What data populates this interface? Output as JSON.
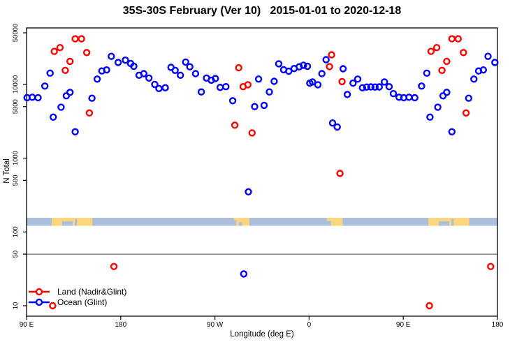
{
  "title": "35S-30S February (Ver 10)   2015-01-01 to 2020-12-18",
  "legend": {
    "items": [
      {
        "label": "Land (Nadir&Glint)",
        "color": "#ff0000"
      },
      {
        "label": "Ocean (Glint)",
        "color": "#0000ff"
      }
    ]
  },
  "chart_data": {
    "type": "scatter",
    "title": "35S-30S February (Ver 10)   2015-01-01 to 2020-12-18",
    "xlabel": "Longitude (deg E)",
    "ylabel": "N Total",
    "x_axis": {
      "range": [
        90,
        540
      ],
      "tick_values": [
        90,
        180,
        270,
        360,
        450,
        540
      ],
      "tick_labels": [
        "90 E",
        "180",
        "90 W",
        "0",
        "90 E",
        "180"
      ],
      "note": "longitude axis wraps: 90E to 180, through 90W and 0, back to 180"
    },
    "y_axis": {
      "scale": "log",
      "tick_values": [
        10,
        50,
        100,
        500,
        1000,
        5000,
        10000,
        50000
      ],
      "tick_labels": [
        "10",
        "50",
        "100",
        "500",
        "1000",
        "5000",
        "10000",
        "50000"
      ],
      "range": [
        8,
        70000
      ]
    },
    "reference_line_y": 50,
    "grid": false,
    "legend_position": "bottom-left",
    "series": [
      {
        "name": "Land (Nadir&Glint)",
        "color": "#ff0000",
        "points": [
          [
            116.5,
            28000
          ],
          [
            122,
            31500
          ],
          [
            127,
            15500
          ],
          [
            131.5,
            20500
          ],
          [
            136.5,
            41500
          ],
          [
            142.5,
            41500
          ],
          [
            147.5,
            27000
          ],
          [
            150,
            4100
          ],
          [
            115,
            10
          ],
          [
            173.5,
            34
          ],
          [
            476.5,
            28000
          ],
          [
            482,
            31500
          ],
          [
            487,
            15500
          ],
          [
            491.5,
            20500
          ],
          [
            496.5,
            41500
          ],
          [
            502.5,
            41500
          ],
          [
            507.5,
            27000
          ],
          [
            510,
            4100
          ],
          [
            475,
            10
          ],
          [
            533.5,
            34
          ],
          [
            289,
            2800
          ],
          [
            292.8,
            16800
          ],
          [
            297,
            9300
          ],
          [
            301.5,
            9900
          ],
          [
            305.5,
            2200
          ],
          [
            379.5,
            17400
          ],
          [
            381.5,
            25200
          ],
          [
            389.5,
            620
          ],
          [
            391.5,
            10900
          ]
        ]
      },
      {
        "name": "Ocean (Glint)",
        "color": "#0000ff",
        "points": [
          [
            90.5,
            6600
          ],
          [
            95.5,
            6700
          ],
          [
            101,
            6600
          ],
          [
            107.5,
            9500
          ],
          [
            112.5,
            14200
          ],
          [
            115.5,
            3600
          ],
          [
            123,
            4900
          ],
          [
            128,
            7000
          ],
          [
            131.5,
            7800
          ],
          [
            136.5,
            2280
          ],
          [
            152.5,
            6500
          ],
          [
            157.5,
            11800
          ],
          [
            162,
            15200
          ],
          [
            166.5,
            15700
          ],
          [
            171,
            24000
          ],
          [
            177.5,
            19800
          ],
          [
            184.5,
            21300
          ],
          [
            189.5,
            19200
          ],
          [
            192.5,
            17600
          ],
          [
            197.5,
            13300
          ],
          [
            202,
            14000
          ],
          [
            207,
            12200
          ],
          [
            212.5,
            10000
          ],
          [
            216.5,
            8800
          ],
          [
            222.5,
            9000
          ],
          [
            228,
            17000
          ],
          [
            232,
            15500
          ],
          [
            237,
            13300
          ],
          [
            242,
            20100
          ],
          [
            246,
            17300
          ],
          [
            251.5,
            14000
          ],
          [
            257,
            7900
          ],
          [
            262,
            12200
          ],
          [
            266.5,
            11400
          ],
          [
            270.5,
            12000
          ],
          [
            275,
            9100
          ],
          [
            280.5,
            9300
          ],
          [
            287,
            6000
          ],
          [
            297.6,
            27
          ],
          [
            302,
            350
          ],
          [
            308,
            5000
          ],
          [
            311.7,
            11800
          ],
          [
            317,
            5200
          ],
          [
            322,
            7900
          ],
          [
            326.6,
            11000
          ],
          [
            331,
            19000
          ],
          [
            335.7,
            15800
          ],
          [
            340.6,
            15100
          ],
          [
            345.7,
            16400
          ],
          [
            350.6,
            17300
          ],
          [
            354.6,
            18200
          ],
          [
            358.4,
            17600
          ],
          [
            360.7,
            10400
          ],
          [
            363.3,
            10800
          ],
          [
            368.4,
            9900
          ],
          [
            372.2,
            14000
          ],
          [
            376.2,
            21600
          ],
          [
            382.4,
            3000
          ],
          [
            386.9,
            2650
          ],
          [
            392.5,
            16300
          ],
          [
            396.5,
            7300
          ],
          [
            402,
            10400
          ],
          [
            406.5,
            11800
          ],
          [
            411,
            9000
          ],
          [
            415,
            9200
          ],
          [
            419,
            9250
          ],
          [
            423,
            9200
          ],
          [
            427,
            9250
          ],
          [
            432,
            10800
          ],
          [
            436.5,
            9300
          ],
          [
            440.5,
            7500
          ],
          [
            446,
            6700
          ],
          [
            450.5,
            6600
          ],
          [
            455.5,
            6700
          ],
          [
            461,
            6600
          ],
          [
            467.5,
            9500
          ],
          [
            472.5,
            14200
          ],
          [
            475.5,
            3600
          ],
          [
            483,
            4900
          ],
          [
            488,
            7000
          ],
          [
            491.5,
            7800
          ],
          [
            496.5,
            2280
          ],
          [
            512.5,
            6500
          ],
          [
            517.5,
            11800
          ],
          [
            522,
            15200
          ],
          [
            526.5,
            15700
          ],
          [
            531,
            24000
          ],
          [
            537.5,
            19800
          ]
        ]
      }
    ],
    "map_band": {
      "description": "world map strip of the 35S-30S latitude band",
      "ocean_color": "#a9bfdc",
      "land_color": "#fbd67e",
      "land_segments": [
        {
          "range": [
            114,
            153
          ],
          "notches": [
            [
              124,
              134,
              0.55
            ],
            [
              136,
              138.2,
              0.85
            ]
          ]
        },
        {
          "range": [
            288,
            303
          ],
          "notches": [
            [
              288,
              290.5,
              0.7
            ],
            [
              293,
              296,
              0.45
            ]
          ]
        },
        {
          "range": [
            377,
            392
          ],
          "notches": [
            [
              377,
              381,
              0.6
            ]
          ]
        },
        {
          "range": [
            474,
            513
          ],
          "notches": [
            [
              484,
              494,
              0.55
            ],
            [
              496,
              498.2,
              0.85
            ]
          ]
        }
      ]
    }
  }
}
